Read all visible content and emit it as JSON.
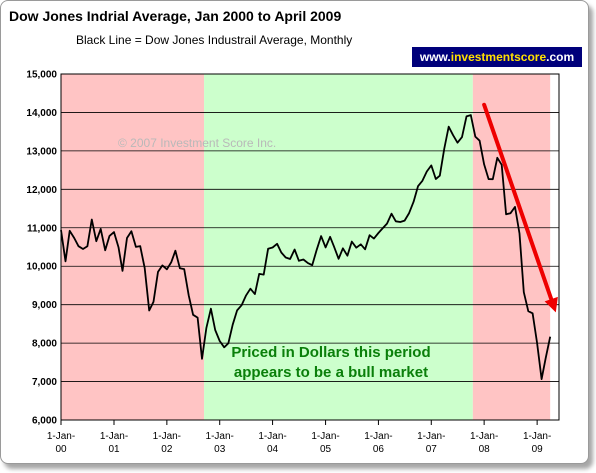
{
  "chart_data": {
    "type": "line",
    "title": "Dow Jones Indrial Average, Jan 2000 to April 2009",
    "subtitle": "Black Line = Dow Jones Industrail Average, Monthly",
    "badge": {
      "prefix": "www.",
      "brand": "investmentscore",
      "suffix": ".com"
    },
    "copyright": "© 2007 Investment Score Inc.",
    "annotation_lines": [
      "Priced in Dollars this period",
      "appears to be a bull market"
    ],
    "ylim": [
      6000,
      15000
    ],
    "y_ticks": [
      6000,
      7000,
      8000,
      9000,
      10000,
      11000,
      12000,
      13000,
      14000,
      15000
    ],
    "y_tick_labels": [
      "6,000",
      "7,000",
      "8,000",
      "9,000",
      "10,000",
      "11,000",
      "12,000",
      "13,000",
      "14,000",
      "15,000"
    ],
    "x_range": [
      "2000-01-01",
      "2009-06-01"
    ],
    "x_ticks": [
      {
        "date": "2000-01-01",
        "line1": "1-Jan-",
        "line2": "00"
      },
      {
        "date": "2001-01-01",
        "line1": "1-Jan-",
        "line2": "01"
      },
      {
        "date": "2002-01-01",
        "line1": "1-Jan-",
        "line2": "02"
      },
      {
        "date": "2003-01-01",
        "line1": "1-Jan-",
        "line2": "03"
      },
      {
        "date": "2004-01-01",
        "line1": "1-Jan-",
        "line2": "04"
      },
      {
        "date": "2005-01-01",
        "line1": "1-Jan-",
        "line2": "05"
      },
      {
        "date": "2006-01-01",
        "line1": "1-Jan-",
        "line2": "06"
      },
      {
        "date": "2007-01-01",
        "line1": "1-Jan-",
        "line2": "07"
      },
      {
        "date": "2008-01-01",
        "line1": "1-Jan-",
        "line2": "08"
      },
      {
        "date": "2009-01-01",
        "line1": "1-Jan-",
        "line2": "09"
      }
    ],
    "shaded_regions": [
      {
        "start": "2000-01-01",
        "end": "2002-09-15",
        "color": "#ffc4c4"
      },
      {
        "start": "2002-09-15",
        "end": "2007-10-15",
        "color": "#ccffcc"
      },
      {
        "start": "2007-10-15",
        "end": "2009-04-01",
        "color": "#ffc4c4"
      }
    ],
    "gridlines": true,
    "series": [
      {
        "color": "#000000",
        "x": [
          "2000-01",
          "2000-02",
          "2000-03",
          "2000-04",
          "2000-05",
          "2000-06",
          "2000-07",
          "2000-08",
          "2000-09",
          "2000-10",
          "2000-11",
          "2000-12",
          "2001-01",
          "2001-02",
          "2001-03",
          "2001-04",
          "2001-05",
          "2001-06",
          "2001-07",
          "2001-08",
          "2001-09",
          "2001-10",
          "2001-11",
          "2001-12",
          "2002-01",
          "2002-02",
          "2002-03",
          "2002-04",
          "2002-05",
          "2002-06",
          "2002-07",
          "2002-08",
          "2002-09",
          "2002-10",
          "2002-11",
          "2002-12",
          "2003-01",
          "2003-02",
          "2003-03",
          "2003-04",
          "2003-05",
          "2003-06",
          "2003-07",
          "2003-08",
          "2003-09",
          "2003-10",
          "2003-11",
          "2003-12",
          "2004-01",
          "2004-02",
          "2004-03",
          "2004-04",
          "2004-05",
          "2004-06",
          "2004-07",
          "2004-08",
          "2004-09",
          "2004-10",
          "2004-11",
          "2004-12",
          "2005-01",
          "2005-02",
          "2005-03",
          "2005-04",
          "2005-05",
          "2005-06",
          "2005-07",
          "2005-08",
          "2005-09",
          "2005-10",
          "2005-11",
          "2005-12",
          "2006-01",
          "2006-02",
          "2006-03",
          "2006-04",
          "2006-05",
          "2006-06",
          "2006-07",
          "2006-08",
          "2006-09",
          "2006-10",
          "2006-11",
          "2006-12",
          "2007-01",
          "2007-02",
          "2007-03",
          "2007-04",
          "2007-05",
          "2007-06",
          "2007-07",
          "2007-08",
          "2007-09",
          "2007-10",
          "2007-11",
          "2007-12",
          "2008-01",
          "2008-02",
          "2008-03",
          "2008-04",
          "2008-05",
          "2008-06",
          "2008-07",
          "2008-08",
          "2008-09",
          "2008-10",
          "2008-11",
          "2008-12",
          "2009-01",
          "2009-02",
          "2009-03",
          "2009-04"
        ],
        "values": [
          10941,
          10128,
          10922,
          10734,
          10522,
          10448,
          10522,
          11215,
          10651,
          10971,
          10415,
          10788,
          10887,
          10495,
          9879,
          10735,
          10912,
          10502,
          10523,
          9950,
          8848,
          9075,
          9852,
          10022,
          9920,
          10106,
          10404,
          9946,
          9925,
          9243,
          8737,
          8663,
          7592,
          8397,
          8896,
          8342,
          8054,
          7891,
          7992,
          8480,
          8850,
          8985,
          9234,
          9416,
          9275,
          9801,
          9782,
          10454,
          10488,
          10584,
          10358,
          10226,
          10188,
          10435,
          10140,
          10174,
          10080,
          10027,
          10428,
          10783,
          10490,
          10766,
          10504,
          10193,
          10467,
          10275,
          10641,
          10482,
          10569,
          10440,
          10806,
          10718,
          10865,
          10993,
          11109,
          11367,
          11168,
          11150,
          11186,
          11381,
          11679,
          12081,
          12221,
          12463,
          12622,
          12269,
          12354,
          13063,
          13628,
          13409,
          13212,
          13358,
          13896,
          13930,
          13372,
          13265,
          12650,
          12266,
          12263,
          12820,
          12638,
          11350,
          11378,
          11544,
          10851,
          9325,
          8829,
          8776,
          8001,
          7063,
          7609,
          8168
        ]
      }
    ],
    "trend_arrow": {
      "from": {
        "date": "2008-01-01",
        "value": 14200
      },
      "to": {
        "date": "2009-05-10",
        "value": 8800
      },
      "color": "#ee0000"
    }
  }
}
